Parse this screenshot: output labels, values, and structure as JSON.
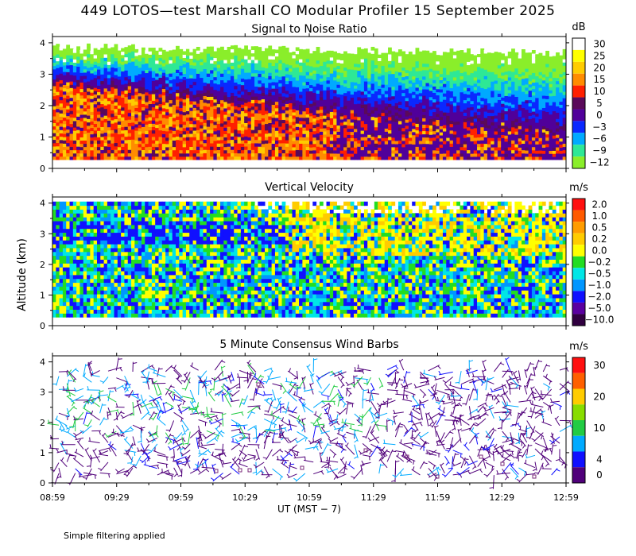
{
  "title": "449 LOTOS—test Marshall CO Modular Profiler 15 September 2025",
  "y_axis_label": "Altitude (km)",
  "x_axis_label": "UT  (MST − 7)",
  "footnote": "Simple filtering applied",
  "chart_data": [
    {
      "type": "heatmap",
      "title": "Signal to Noise Ratio",
      "unit": "dB",
      "x_ticks": [
        "08:59",
        "09:29",
        "09:59",
        "10:29",
        "10:59",
        "11:29",
        "11:59",
        "12:29",
        "12:59"
      ],
      "y_ticks": [
        0,
        1,
        2,
        3,
        4
      ],
      "ylim": [
        0,
        4.2
      ],
      "color_levels": [
        {
          "label": "30",
          "color": "#ffffff"
        },
        {
          "label": "25",
          "color": "#ffff00"
        },
        {
          "label": "20",
          "color": "#ffcc00"
        },
        {
          "label": "15",
          "color": "#ff8c00"
        },
        {
          "label": "10",
          "color": "#ff2000"
        },
        {
          "label": "5",
          "color": "#5a0a5a"
        },
        {
          "label": "0",
          "color": "#50009a"
        },
        {
          "label": "−3",
          "color": "#0a28ff"
        },
        {
          "label": "−6",
          "color": "#00aaff"
        },
        {
          "label": "−9",
          "color": "#2ee896"
        },
        {
          "label": "−12",
          "color": "#8aee2a"
        }
      ]
    },
    {
      "type": "heatmap",
      "title": "Vertical Velocity",
      "unit": "m/s",
      "x_ticks": [
        "08:59",
        "09:29",
        "09:59",
        "10:29",
        "10:59",
        "11:29",
        "11:59",
        "12:29",
        "12:59"
      ],
      "y_ticks": [
        0,
        1,
        2,
        3,
        4
      ],
      "ylim": [
        0,
        4.2
      ],
      "color_levels": [
        {
          "label": "2.0",
          "color": "#ff1010"
        },
        {
          "label": "1.0",
          "color": "#ff5a00"
        },
        {
          "label": "0.5",
          "color": "#ff9c00"
        },
        {
          "label": "0.2",
          "color": "#ffcc00"
        },
        {
          "label": "0.0",
          "color": "#ffff00"
        },
        {
          "label": "−0.2",
          "color": "#22dd22"
        },
        {
          "label": "−0.5",
          "color": "#00e6e6"
        },
        {
          "label": "−1.0",
          "color": "#0096ff"
        },
        {
          "label": "−2.0",
          "color": "#1010ff"
        },
        {
          "label": "−5.0",
          "color": "#5a00a0"
        },
        {
          "label": "−10.0",
          "color": "#300040"
        }
      ]
    },
    {
      "type": "scatter",
      "title": "5 Minute Consensus Wind Barbs",
      "unit": "m/s",
      "x_ticks": [
        "08:59",
        "09:29",
        "09:59",
        "10:29",
        "10:59",
        "11:29",
        "11:59",
        "12:29",
        "12:59"
      ],
      "y_ticks": [
        0,
        1,
        2,
        3,
        4
      ],
      "ylim": [
        0,
        4.2
      ],
      "color_levels": [
        {
          "label": "30",
          "color": "#ff1010"
        },
        {
          "label": "",
          "color": "#ff6000"
        },
        {
          "label": "20",
          "color": "#ffcc00"
        },
        {
          "label": "",
          "color": "#88dd00"
        },
        {
          "label": "10",
          "color": "#22cc44"
        },
        {
          "label": "",
          "color": "#00aaff"
        },
        {
          "label": "4",
          "color": "#1010ff"
        },
        {
          "label": "0",
          "color": "#50007a"
        }
      ]
    }
  ]
}
